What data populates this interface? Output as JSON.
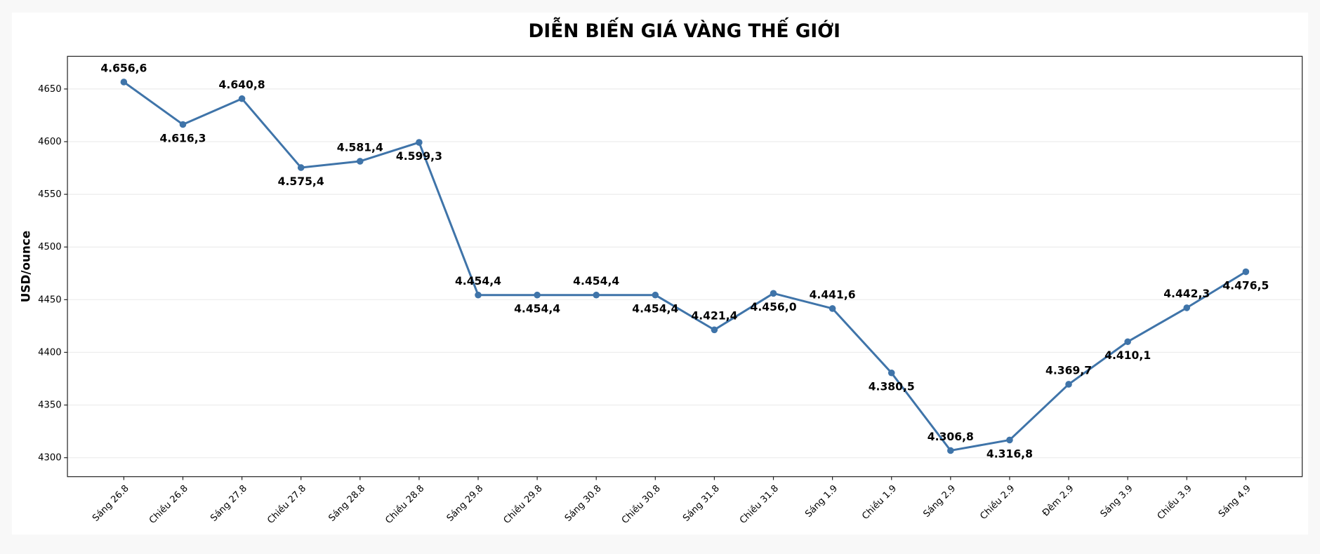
{
  "chart_data": {
    "type": "line",
    "title": "DIỄN BIẾN GIÁ VÀNG THẾ GIỚI",
    "y_label": "USD/ounce",
    "categories": [
      "Sáng 26.8",
      "Chiều 26.8",
      "Sáng 27.8",
      "Chiều 27.8",
      "Sáng 28.8",
      "Chiều 28.8",
      "Sáng 29.8",
      "Chiều 29.8",
      "Sáng 30.8",
      "Chiều 30.8",
      "Sáng 31.8",
      "Chiều 31.8",
      "Sáng 1.9",
      "Chiều 1.9",
      "Sáng 2.9",
      "Chiều 2.9",
      "Đêm 2.9",
      "Sáng 3.9",
      "Chiều 3.9",
      "Sáng 4.9"
    ],
    "values": [
      4656.6,
      4616.3,
      4640.8,
      4575.4,
      4581.4,
      4599.3,
      4454.4,
      4454.4,
      4454.4,
      4454.4,
      4421.4,
      4456.0,
      4441.6,
      4380.5,
      4306.8,
      4316.8,
      4369.7,
      4410.1,
      4442.3,
      4476.5
    ],
    "value_labels": [
      "4.656,6",
      "4.616,3",
      "4.640,8",
      "4.575,4",
      "4.581,4",
      "4.599,3",
      "4.454,4",
      "4.454,4",
      "4.454,4",
      "4.454,4",
      "4.421,4",
      "4.456,0",
      "4.441,6",
      "4.380,5",
      "4.306,8",
      "4.316,8",
      "4.369,7",
      "4.410,1",
      "4.442,3",
      "4.476,5"
    ],
    "color": "#3f74a9",
    "ylim": [
      4282,
      4681
    ],
    "yticks": [
      4300,
      4350,
      4400,
      4450,
      4500,
      4550,
      4600,
      4650
    ],
    "grid": true
  }
}
